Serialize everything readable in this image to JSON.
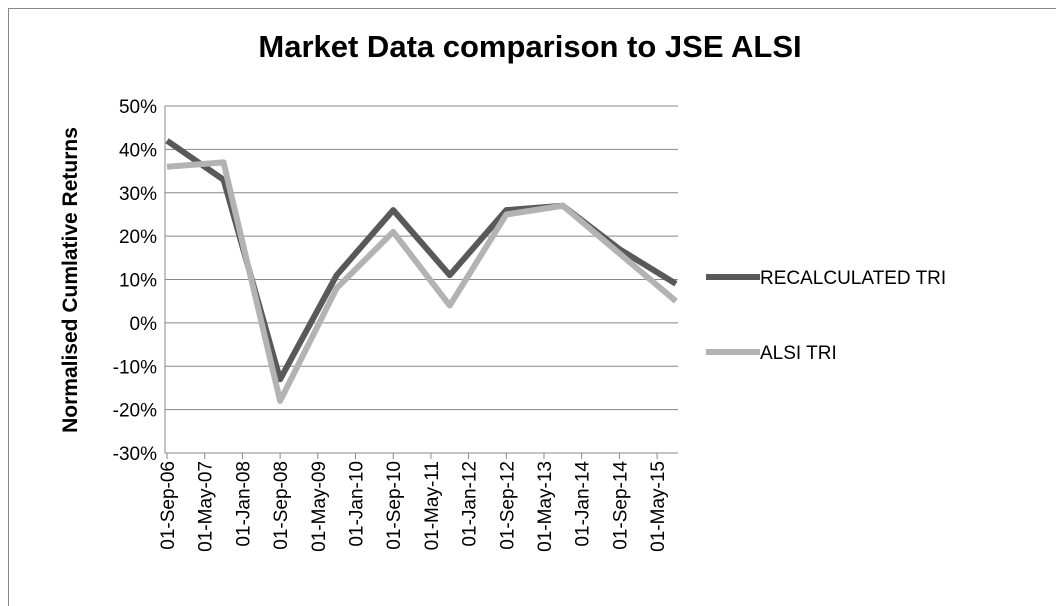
{
  "chart_data": {
    "type": "line",
    "title": "Market Data comparison to JSE ALSI",
    "y_label": "Normalised Cumlative Returns",
    "categories": [
      "01-Sep-06",
      "01-May-07",
      "01-Jan-08",
      "01-Sep-08",
      "01-May-09",
      "01-Jan-10",
      "01-Sep-10",
      "01-May-11",
      "01-Jan-12",
      "01-Sep-12",
      "01-May-13",
      "01-Jan-14",
      "01-Sep-14",
      "01-May-15"
    ],
    "x": [
      0,
      1.5,
      3,
      4.5,
      6,
      7.5,
      9,
      10.5,
      12,
      13.5
    ],
    "series": [
      {
        "name": "RECALCULATED TRI",
        "color": "#595959",
        "values": [
          42,
          33,
          -13,
          11,
          26,
          11,
          26,
          27,
          17,
          9
        ]
      },
      {
        "name": "ALSI TRI",
        "color": "#b3b3b3",
        "values": [
          36,
          37,
          -18,
          8,
          21,
          4,
          25,
          27,
          16,
          5
        ]
      }
    ],
    "ylim": [
      -30,
      50
    ],
    "yticks": [
      {
        "value": -30,
        "label": "-30%"
      },
      {
        "value": -20,
        "label": "-20%"
      },
      {
        "value": -10,
        "label": "-10%"
      },
      {
        "value": 0,
        "label": "0%"
      },
      {
        "value": 10,
        "label": "10%"
      },
      {
        "value": 20,
        "label": "20%"
      },
      {
        "value": 30,
        "label": "30%"
      },
      {
        "value": 40,
        "label": "40%"
      },
      {
        "value": 50,
        "label": "50%"
      }
    ],
    "grid": true,
    "legend": "right"
  }
}
